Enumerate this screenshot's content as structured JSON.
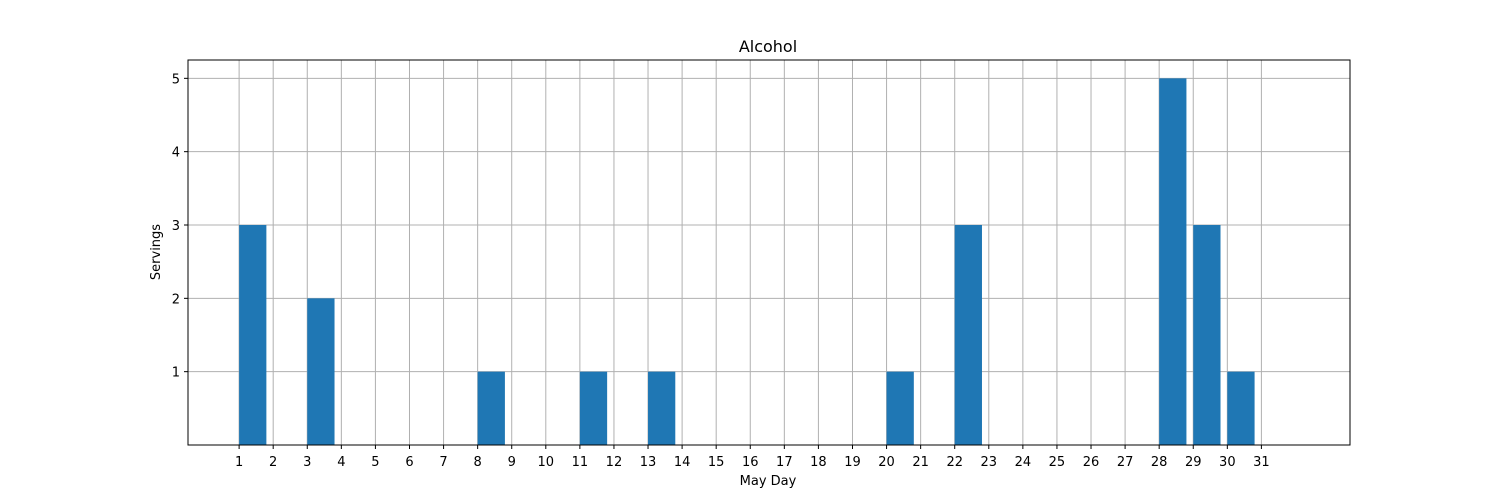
{
  "chart_data": {
    "type": "bar",
    "title": "Alcohol",
    "xlabel": "May Day",
    "ylabel": "Servings",
    "x_ticks": [
      1,
      2,
      3,
      4,
      5,
      6,
      7,
      8,
      9,
      10,
      11,
      12,
      13,
      14,
      15,
      16,
      17,
      18,
      19,
      20,
      21,
      22,
      23,
      24,
      25,
      26,
      27,
      28,
      29,
      30,
      31
    ],
    "y_ticks": [
      1,
      2,
      3,
      4,
      5
    ],
    "xlim": [
      -0.5,
      33.6
    ],
    "ylim": [
      0,
      5.25
    ],
    "bar_width": 0.8,
    "bar_alignment": "left-edge-at-day",
    "grid": true,
    "bar_color": "#1f77b4",
    "bars": [
      {
        "day": 1,
        "value": 3
      },
      {
        "day": 3,
        "value": 2
      },
      {
        "day": 8,
        "value": 1
      },
      {
        "day": 11,
        "value": 1
      },
      {
        "day": 13,
        "value": 1
      },
      {
        "day": 20,
        "value": 1
      },
      {
        "day": 22,
        "value": 3
      },
      {
        "day": 28,
        "value": 5
      },
      {
        "day": 29,
        "value": 3
      },
      {
        "day": 30,
        "value": 1
      }
    ]
  }
}
